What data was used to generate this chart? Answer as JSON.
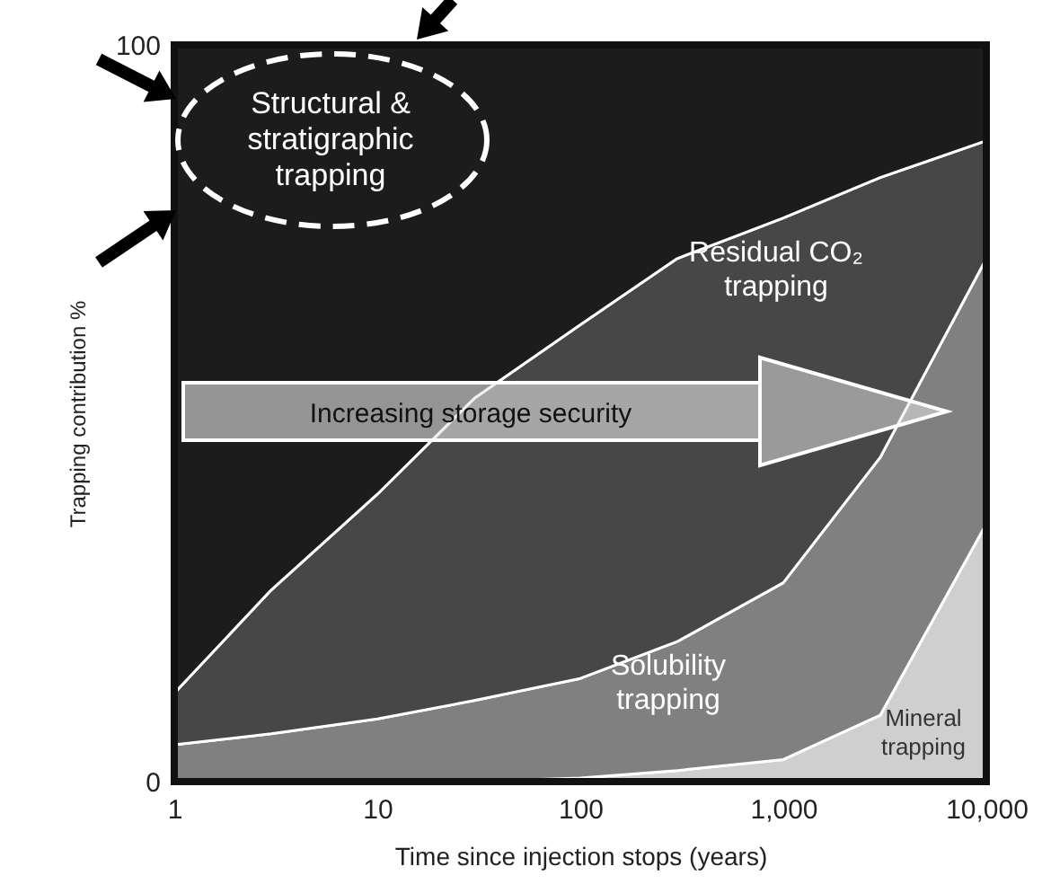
{
  "chart_data": {
    "type": "area",
    "stacked": true,
    "xlabel": "Time since injection stops (years)",
    "ylabel": "Trapping contribution %",
    "x": [
      1,
      3,
      10,
      30,
      100,
      300,
      1000,
      3000,
      10000
    ],
    "log": "x",
    "xlim": [
      1,
      10000
    ],
    "xticks": [
      1,
      10,
      100,
      {
        "value": 1000,
        "label": "1,000"
      },
      {
        "value": 10000,
        "label": "10,000"
      }
    ],
    "ylim": [
      0,
      100
    ],
    "yticks": [
      0,
      100
    ],
    "grid": false,
    "legend": false,
    "series": [
      {
        "name": "Mineral trapping",
        "color": "#cfcfcf",
        "values": [
          0,
          0,
          0,
          0,
          0.5,
          1.5,
          3,
          9,
          35
        ]
      },
      {
        "name": "Solubility trapping",
        "color": "#808080",
        "values": [
          5,
          6.5,
          8.5,
          11,
          13.5,
          17.5,
          24,
          35,
          36
        ]
      },
      {
        "name": "Residual CO₂ trapping",
        "color": "#474747",
        "values": [
          7,
          19.5,
          30.5,
          41,
          48,
          52,
          49.5,
          38,
          16
        ]
      },
      {
        "name": "Structural & stratigraphic trapping",
        "color": "#1c1c1c",
        "values": [
          88,
          74,
          61,
          48,
          38,
          29,
          23.5,
          18,
          13
        ]
      }
    ],
    "annotations": [
      "Increasing storage security"
    ]
  }
}
